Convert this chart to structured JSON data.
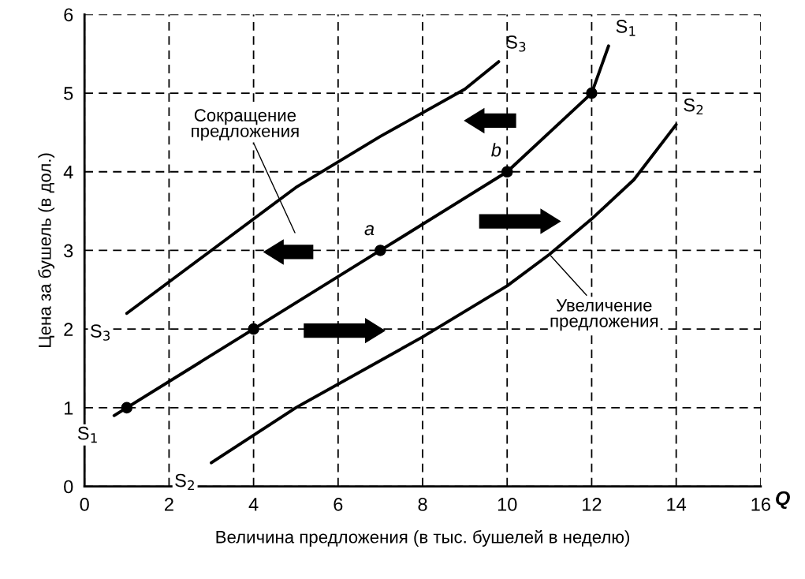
{
  "chart_data": {
    "type": "line",
    "xlabel": "Величина предложения (в тыс. бушелей в неделю)",
    "ylabel": "Цена за бушель (в дол.)",
    "xlim": [
      0,
      16
    ],
    "ylim": [
      0,
      6
    ],
    "xticks": [
      0,
      2,
      4,
      6,
      8,
      10,
      12,
      14,
      16
    ],
    "yticks": [
      0,
      1,
      2,
      3,
      4,
      5,
      6
    ],
    "grid": true,
    "line_style": "solid",
    "marker": "none",
    "series": [
      {
        "name": "S$_{3}$",
        "color": "#000000",
        "x": [
          1,
          3,
          5,
          7,
          9,
          9.8
        ],
        "values": [
          2.2,
          3.0,
          3.8,
          4.45,
          5.05,
          5.4
        ]
      },
      {
        "name": "S$_{1}$",
        "color": "#000000",
        "x": [
          0.7,
          1,
          4,
          7,
          10,
          12,
          12.4
        ],
        "values": [
          0.9,
          1,
          2,
          3,
          4,
          5,
          5.6
        ]
      },
      {
        "name": "S$_{2}$",
        "color": "#000000",
        "x": [
          3,
          5,
          8,
          10,
          11,
          12,
          13,
          14
        ],
        "values": [
          0.3,
          1.0,
          1.9,
          2.55,
          2.95,
          3.4,
          3.9,
          4.6
        ]
      },
      {
        "type": "scatter",
        "marker": "circle",
        "color": "#000000",
        "x": [
          1,
          4,
          7,
          10,
          12
        ],
        "values": [
          1,
          2,
          3,
          4,
          5
        ]
      }
    ],
    "annotations": [
      {
        "text": "a",
        "x": 7,
        "y": 3
      },
      {
        "text": "b",
        "x": 10,
        "y": 4
      },
      "Сокращение\nпредложения",
      {
        "text": "Увеличение\nпредложения",
        "x": 11,
        "y": 2.95
      },
      "Q"
    ]
  }
}
